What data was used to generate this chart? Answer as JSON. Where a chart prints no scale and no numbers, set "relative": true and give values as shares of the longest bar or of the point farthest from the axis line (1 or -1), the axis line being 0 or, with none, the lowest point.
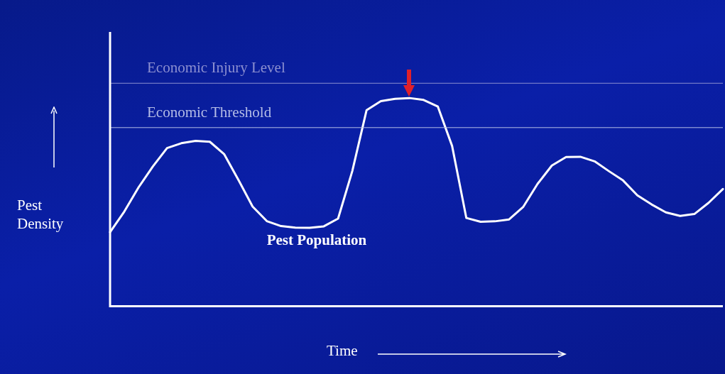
{
  "chart_data": {
    "type": "line",
    "relative": true,
    "xlabel": "Time",
    "ylabel": "Pest Density",
    "categories": [
      null,
      null,
      null,
      null,
      null,
      null,
      null,
      null,
      null,
      null,
      null,
      null,
      null,
      null,
      null,
      null,
      null,
      null,
      null,
      null,
      null,
      null,
      null,
      null,
      null,
      null,
      null,
      null,
      null,
      null,
      null,
      null,
      null,
      null,
      null,
      null,
      null,
      null,
      null,
      null,
      null,
      null,
      null,
      null
    ],
    "series": [
      {
        "name": "Pest Population",
        "color": "#ffffff",
        "values": [
          0.356,
          0.455,
          0.571,
          0.671,
          0.76,
          0.783,
          0.794,
          0.79,
          0.731,
          0.608,
          0.479,
          0.409,
          0.385,
          0.378,
          0.377,
          0.384,
          0.421,
          0.65,
          0.942,
          0.985,
          0.996,
          1,
          0.991,
          0.959,
          0.77,
          0.424,
          0.406,
          0.408,
          0.417,
          0.478,
          0.588,
          0.676,
          0.717,
          0.718,
          0.696,
          0.649,
          0.604,
          0.533,
          0.489,
          0.451,
          0.434,
          0.443,
          0.497,
          0.563
        ]
      }
    ],
    "ref_lines": [
      {
        "axis": "y",
        "value": 1.071,
        "label": "Economic Injury Level",
        "color": "#8c8fd0"
      },
      {
        "axis": "y",
        "value": 0.858,
        "label": "Economic Threshold",
        "color": "#b4bce6"
      }
    ],
    "marker": "none",
    "line_style": "solid"
  }
}
